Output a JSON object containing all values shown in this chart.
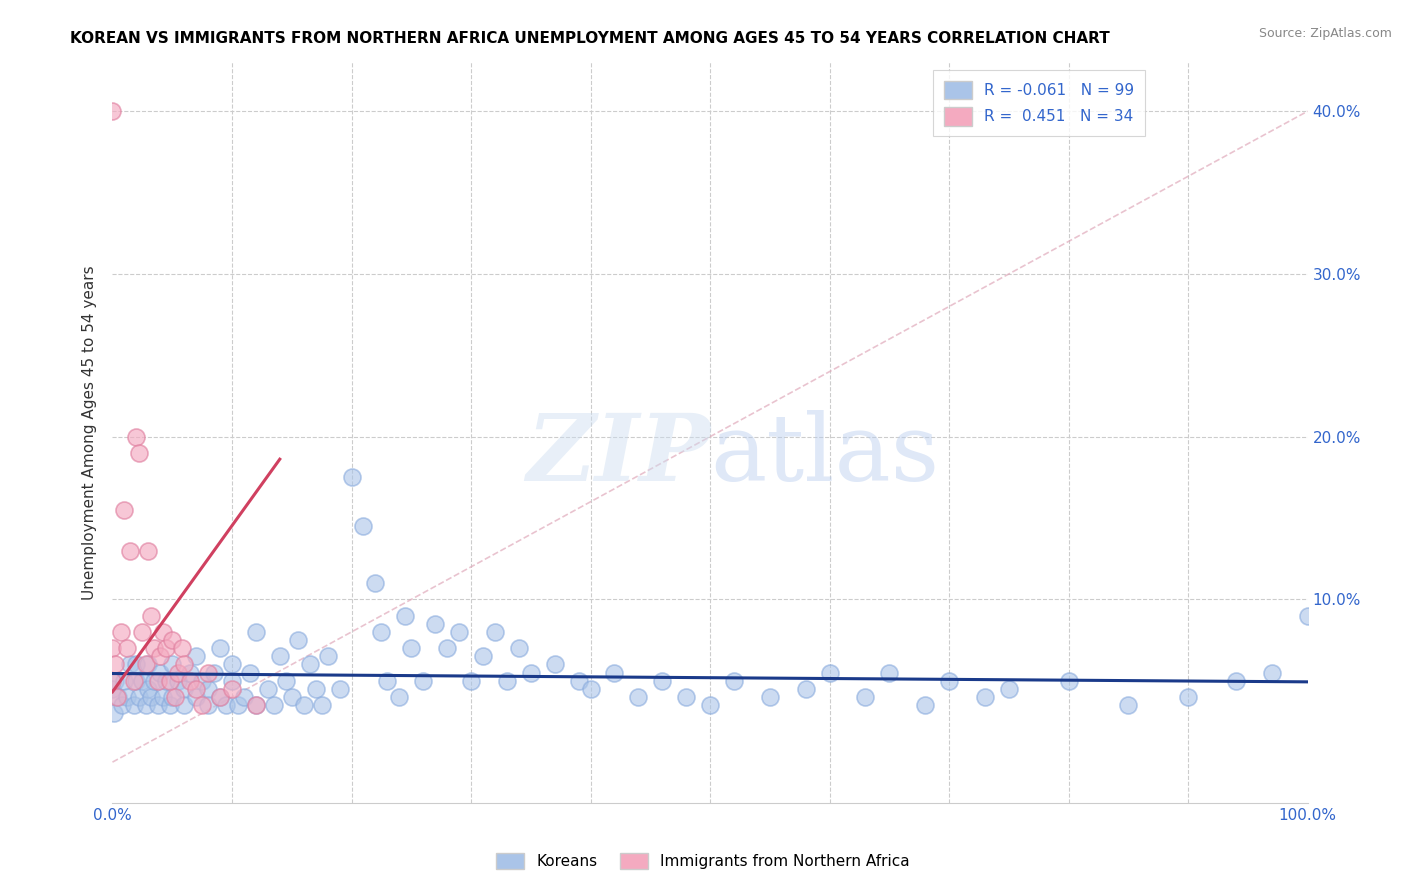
{
  "title": "KOREAN VS IMMIGRANTS FROM NORTHERN AFRICA UNEMPLOYMENT AMONG AGES 45 TO 54 YEARS CORRELATION CHART",
  "source": "Source: ZipAtlas.com",
  "ylabel": "Unemployment Among Ages 45 to 54 years",
  "xlim": [
    0,
    1.0
  ],
  "ylim": [
    -0.025,
    0.43
  ],
  "korean_color": "#aac4e8",
  "korean_edge_color": "#88aadd",
  "immigrant_color": "#f4aac0",
  "immigrant_edge_color": "#e080a0",
  "korean_line_color": "#1a3a8a",
  "immigrant_line_color": "#d04060",
  "ref_line_color": "#e8b0c0",
  "watermark_color": "#ddeeff",
  "legend_korean_R": "-0.061",
  "legend_korean_N": "99",
  "legend_immigrant_R": "0.451",
  "legend_immigrant_N": "34",
  "korean_scatter_x": [
    0.0,
    0.001,
    0.002,
    0.005,
    0.008,
    0.01,
    0.012,
    0.015,
    0.018,
    0.02,
    0.02,
    0.022,
    0.025,
    0.028,
    0.03,
    0.03,
    0.032,
    0.035,
    0.038,
    0.04,
    0.042,
    0.045,
    0.048,
    0.05,
    0.05,
    0.055,
    0.06,
    0.06,
    0.065,
    0.07,
    0.07,
    0.075,
    0.08,
    0.08,
    0.085,
    0.09,
    0.09,
    0.095,
    0.1,
    0.1,
    0.105,
    0.11,
    0.115,
    0.12,
    0.12,
    0.13,
    0.135,
    0.14,
    0.145,
    0.15,
    0.155,
    0.16,
    0.165,
    0.17,
    0.175,
    0.18,
    0.19,
    0.2,
    0.21,
    0.22,
    0.225,
    0.23,
    0.24,
    0.245,
    0.25,
    0.26,
    0.27,
    0.28,
    0.29,
    0.3,
    0.31,
    0.32,
    0.33,
    0.34,
    0.35,
    0.37,
    0.39,
    0.4,
    0.42,
    0.44,
    0.46,
    0.48,
    0.5,
    0.52,
    0.55,
    0.58,
    0.6,
    0.63,
    0.65,
    0.68,
    0.7,
    0.73,
    0.75,
    0.8,
    0.85,
    0.9,
    0.94,
    0.97,
    1.0
  ],
  "korean_scatter_y": [
    0.045,
    0.03,
    0.05,
    0.04,
    0.035,
    0.05,
    0.04,
    0.06,
    0.035,
    0.05,
    0.06,
    0.04,
    0.05,
    0.035,
    0.045,
    0.06,
    0.04,
    0.05,
    0.035,
    0.055,
    0.04,
    0.05,
    0.035,
    0.06,
    0.04,
    0.05,
    0.045,
    0.035,
    0.055,
    0.04,
    0.065,
    0.05,
    0.045,
    0.035,
    0.055,
    0.04,
    0.07,
    0.035,
    0.05,
    0.06,
    0.035,
    0.04,
    0.055,
    0.035,
    0.08,
    0.045,
    0.035,
    0.065,
    0.05,
    0.04,
    0.075,
    0.035,
    0.06,
    0.045,
    0.035,
    0.065,
    0.045,
    0.175,
    0.145,
    0.11,
    0.08,
    0.05,
    0.04,
    0.09,
    0.07,
    0.05,
    0.085,
    0.07,
    0.08,
    0.05,
    0.065,
    0.08,
    0.05,
    0.07,
    0.055,
    0.06,
    0.05,
    0.045,
    0.055,
    0.04,
    0.05,
    0.04,
    0.035,
    0.05,
    0.04,
    0.045,
    0.055,
    0.04,
    0.055,
    0.035,
    0.05,
    0.04,
    0.045,
    0.05,
    0.035,
    0.04,
    0.05,
    0.055,
    0.09
  ],
  "immigrant_scatter_x": [
    0.0,
    0.0,
    0.0,
    0.002,
    0.004,
    0.007,
    0.01,
    0.012,
    0.015,
    0.018,
    0.02,
    0.022,
    0.025,
    0.028,
    0.03,
    0.032,
    0.035,
    0.038,
    0.04,
    0.042,
    0.045,
    0.048,
    0.05,
    0.052,
    0.055,
    0.058,
    0.06,
    0.065,
    0.07,
    0.075,
    0.08,
    0.09,
    0.1,
    0.12
  ],
  "immigrant_scatter_y": [
    0.4,
    0.07,
    0.05,
    0.06,
    0.04,
    0.08,
    0.155,
    0.07,
    0.13,
    0.05,
    0.2,
    0.19,
    0.08,
    0.06,
    0.13,
    0.09,
    0.07,
    0.05,
    0.065,
    0.08,
    0.07,
    0.05,
    0.075,
    0.04,
    0.055,
    0.07,
    0.06,
    0.05,
    0.045,
    0.035,
    0.055,
    0.04,
    0.045,
    0.035
  ]
}
